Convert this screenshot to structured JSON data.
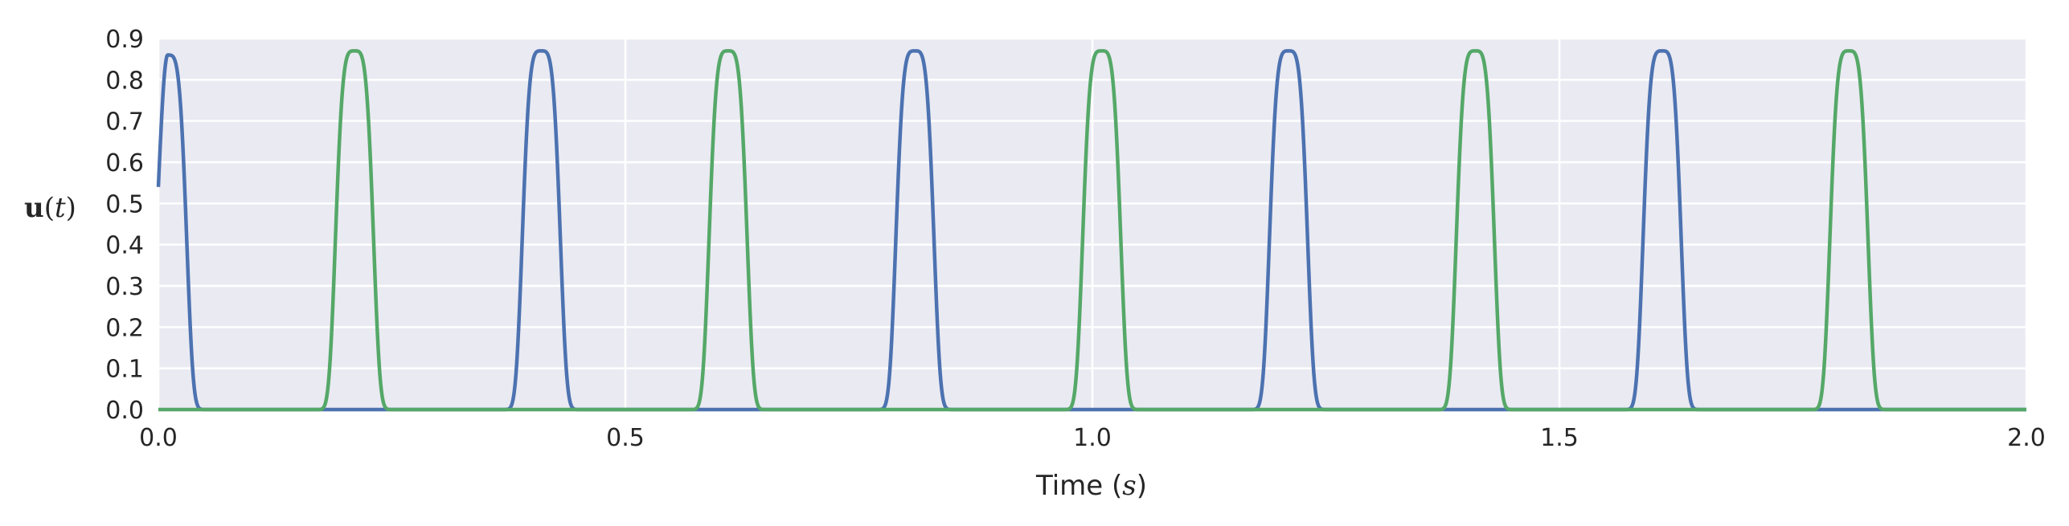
{
  "chart_data": {
    "type": "line",
    "xlabel": "Time (s)",
    "ylabel": "u(t)",
    "xlim": [
      0.0,
      2.0
    ],
    "ylim": [
      0.0,
      0.9
    ],
    "grid": true,
    "xticks": [
      "0.0",
      "0.5",
      "1.0",
      "1.5",
      "2.0"
    ],
    "yticks": [
      "0.0",
      "0.1",
      "0.2",
      "0.3",
      "0.4",
      "0.5",
      "0.6",
      "0.7",
      "0.8",
      "0.9"
    ],
    "series": [
      {
        "color": "#4c72b0",
        "start_value": 0.54,
        "peaks": [
          {
            "x": 0.01,
            "y": 0.86
          },
          {
            "x": 0.41,
            "y": 0.87
          },
          {
            "x": 0.81,
            "y": 0.87
          },
          {
            "x": 1.21,
            "y": 0.87
          },
          {
            "x": 1.61,
            "y": 0.87
          }
        ]
      },
      {
        "color": "#55a868",
        "peaks": [
          {
            "x": 0.21,
            "y": 0.87
          },
          {
            "x": 0.61,
            "y": 0.87
          },
          {
            "x": 1.01,
            "y": 0.87
          },
          {
            "x": 1.41,
            "y": 0.87
          },
          {
            "x": 1.81,
            "y": 0.87
          }
        ]
      }
    ]
  },
  "styles": {
    "plot_background": "#eaeaf2",
    "grid_color": "#ffffff"
  }
}
